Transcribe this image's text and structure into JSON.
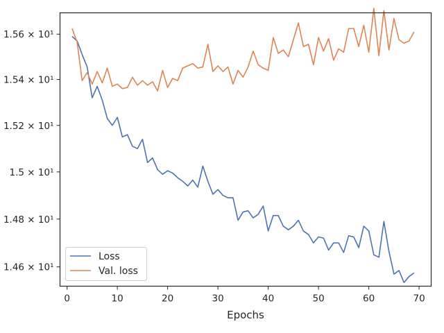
{
  "chart_data": {
    "type": "line",
    "xlabel": "Epochs",
    "ylabel": "",
    "title": "",
    "xlim": [
      -1.4,
      72.4
    ],
    "ylim": [
      14.52,
      15.695
    ],
    "y_scale": "log",
    "grid": false,
    "legend_placement": "lower-left",
    "x_ticks": [
      0,
      10,
      20,
      30,
      40,
      50,
      60,
      70
    ],
    "x_tick_labels": [
      "0",
      "10",
      "20",
      "30",
      "40",
      "50",
      "60",
      "70"
    ],
    "y_ticks": [
      14.6,
      14.8,
      15.0,
      15.2,
      15.4,
      15.6
    ],
    "y_tick_labels": [
      "1.46 × 10¹",
      "1.48 × 10¹",
      "1.5 × 10¹",
      "1.52 × 10¹",
      "1.54 × 10¹",
      "1.56 × 10¹"
    ],
    "x": [
      1,
      2,
      3,
      4,
      5,
      6,
      7,
      8,
      9,
      10,
      11,
      12,
      13,
      14,
      15,
      16,
      17,
      18,
      19,
      20,
      21,
      22,
      23,
      24,
      25,
      26,
      27,
      28,
      29,
      30,
      31,
      32,
      33,
      34,
      35,
      36,
      37,
      38,
      39,
      40,
      41,
      42,
      43,
      44,
      45,
      46,
      47,
      48,
      49,
      50,
      51,
      52,
      53,
      54,
      55,
      56,
      57,
      58,
      59,
      60,
      61,
      62,
      63,
      64,
      65,
      66,
      67,
      68,
      69
    ],
    "series": [
      {
        "name": "Loss",
        "color": "#4c72b0",
        "values": [
          15.59,
          15.57,
          15.51,
          15.455,
          15.32,
          15.37,
          15.31,
          15.23,
          15.2,
          15.235,
          15.15,
          15.16,
          15.11,
          15.1,
          15.14,
          15.04,
          15.06,
          15.01,
          14.99,
          15.005,
          14.995,
          14.975,
          14.96,
          14.94,
          14.965,
          14.935,
          15.025,
          14.96,
          14.905,
          14.925,
          14.9,
          14.89,
          14.89,
          14.795,
          14.83,
          14.835,
          14.805,
          14.82,
          14.855,
          14.75,
          14.815,
          14.815,
          14.77,
          14.755,
          14.77,
          14.795,
          14.75,
          14.735,
          14.7,
          14.725,
          14.72,
          14.67,
          14.7,
          14.7,
          14.66,
          14.73,
          14.725,
          14.68,
          14.77,
          14.75,
          14.65,
          14.64,
          14.79,
          14.665,
          14.57,
          14.585,
          14.535,
          14.56,
          14.575
        ]
      },
      {
        "name": "Val. loss",
        "color": "#dd8452",
        "values": [
          15.625,
          15.565,
          15.395,
          15.43,
          15.38,
          15.435,
          15.385,
          15.45,
          15.37,
          15.38,
          15.36,
          15.365,
          15.41,
          15.375,
          15.395,
          15.375,
          15.39,
          15.35,
          15.44,
          15.365,
          15.405,
          15.395,
          15.45,
          15.46,
          15.47,
          15.45,
          15.455,
          15.555,
          15.435,
          15.46,
          15.435,
          15.455,
          15.38,
          15.44,
          15.41,
          15.455,
          15.525,
          15.465,
          15.45,
          15.44,
          15.585,
          15.515,
          15.53,
          15.5,
          15.575,
          15.65,
          15.545,
          15.555,
          15.465,
          15.585,
          15.525,
          15.58,
          15.485,
          15.535,
          15.52,
          15.625,
          15.625,
          15.545,
          15.64,
          15.52,
          15.715,
          15.505,
          15.705,
          15.53,
          15.67,
          15.575,
          15.56,
          15.57,
          15.61
        ]
      }
    ]
  }
}
